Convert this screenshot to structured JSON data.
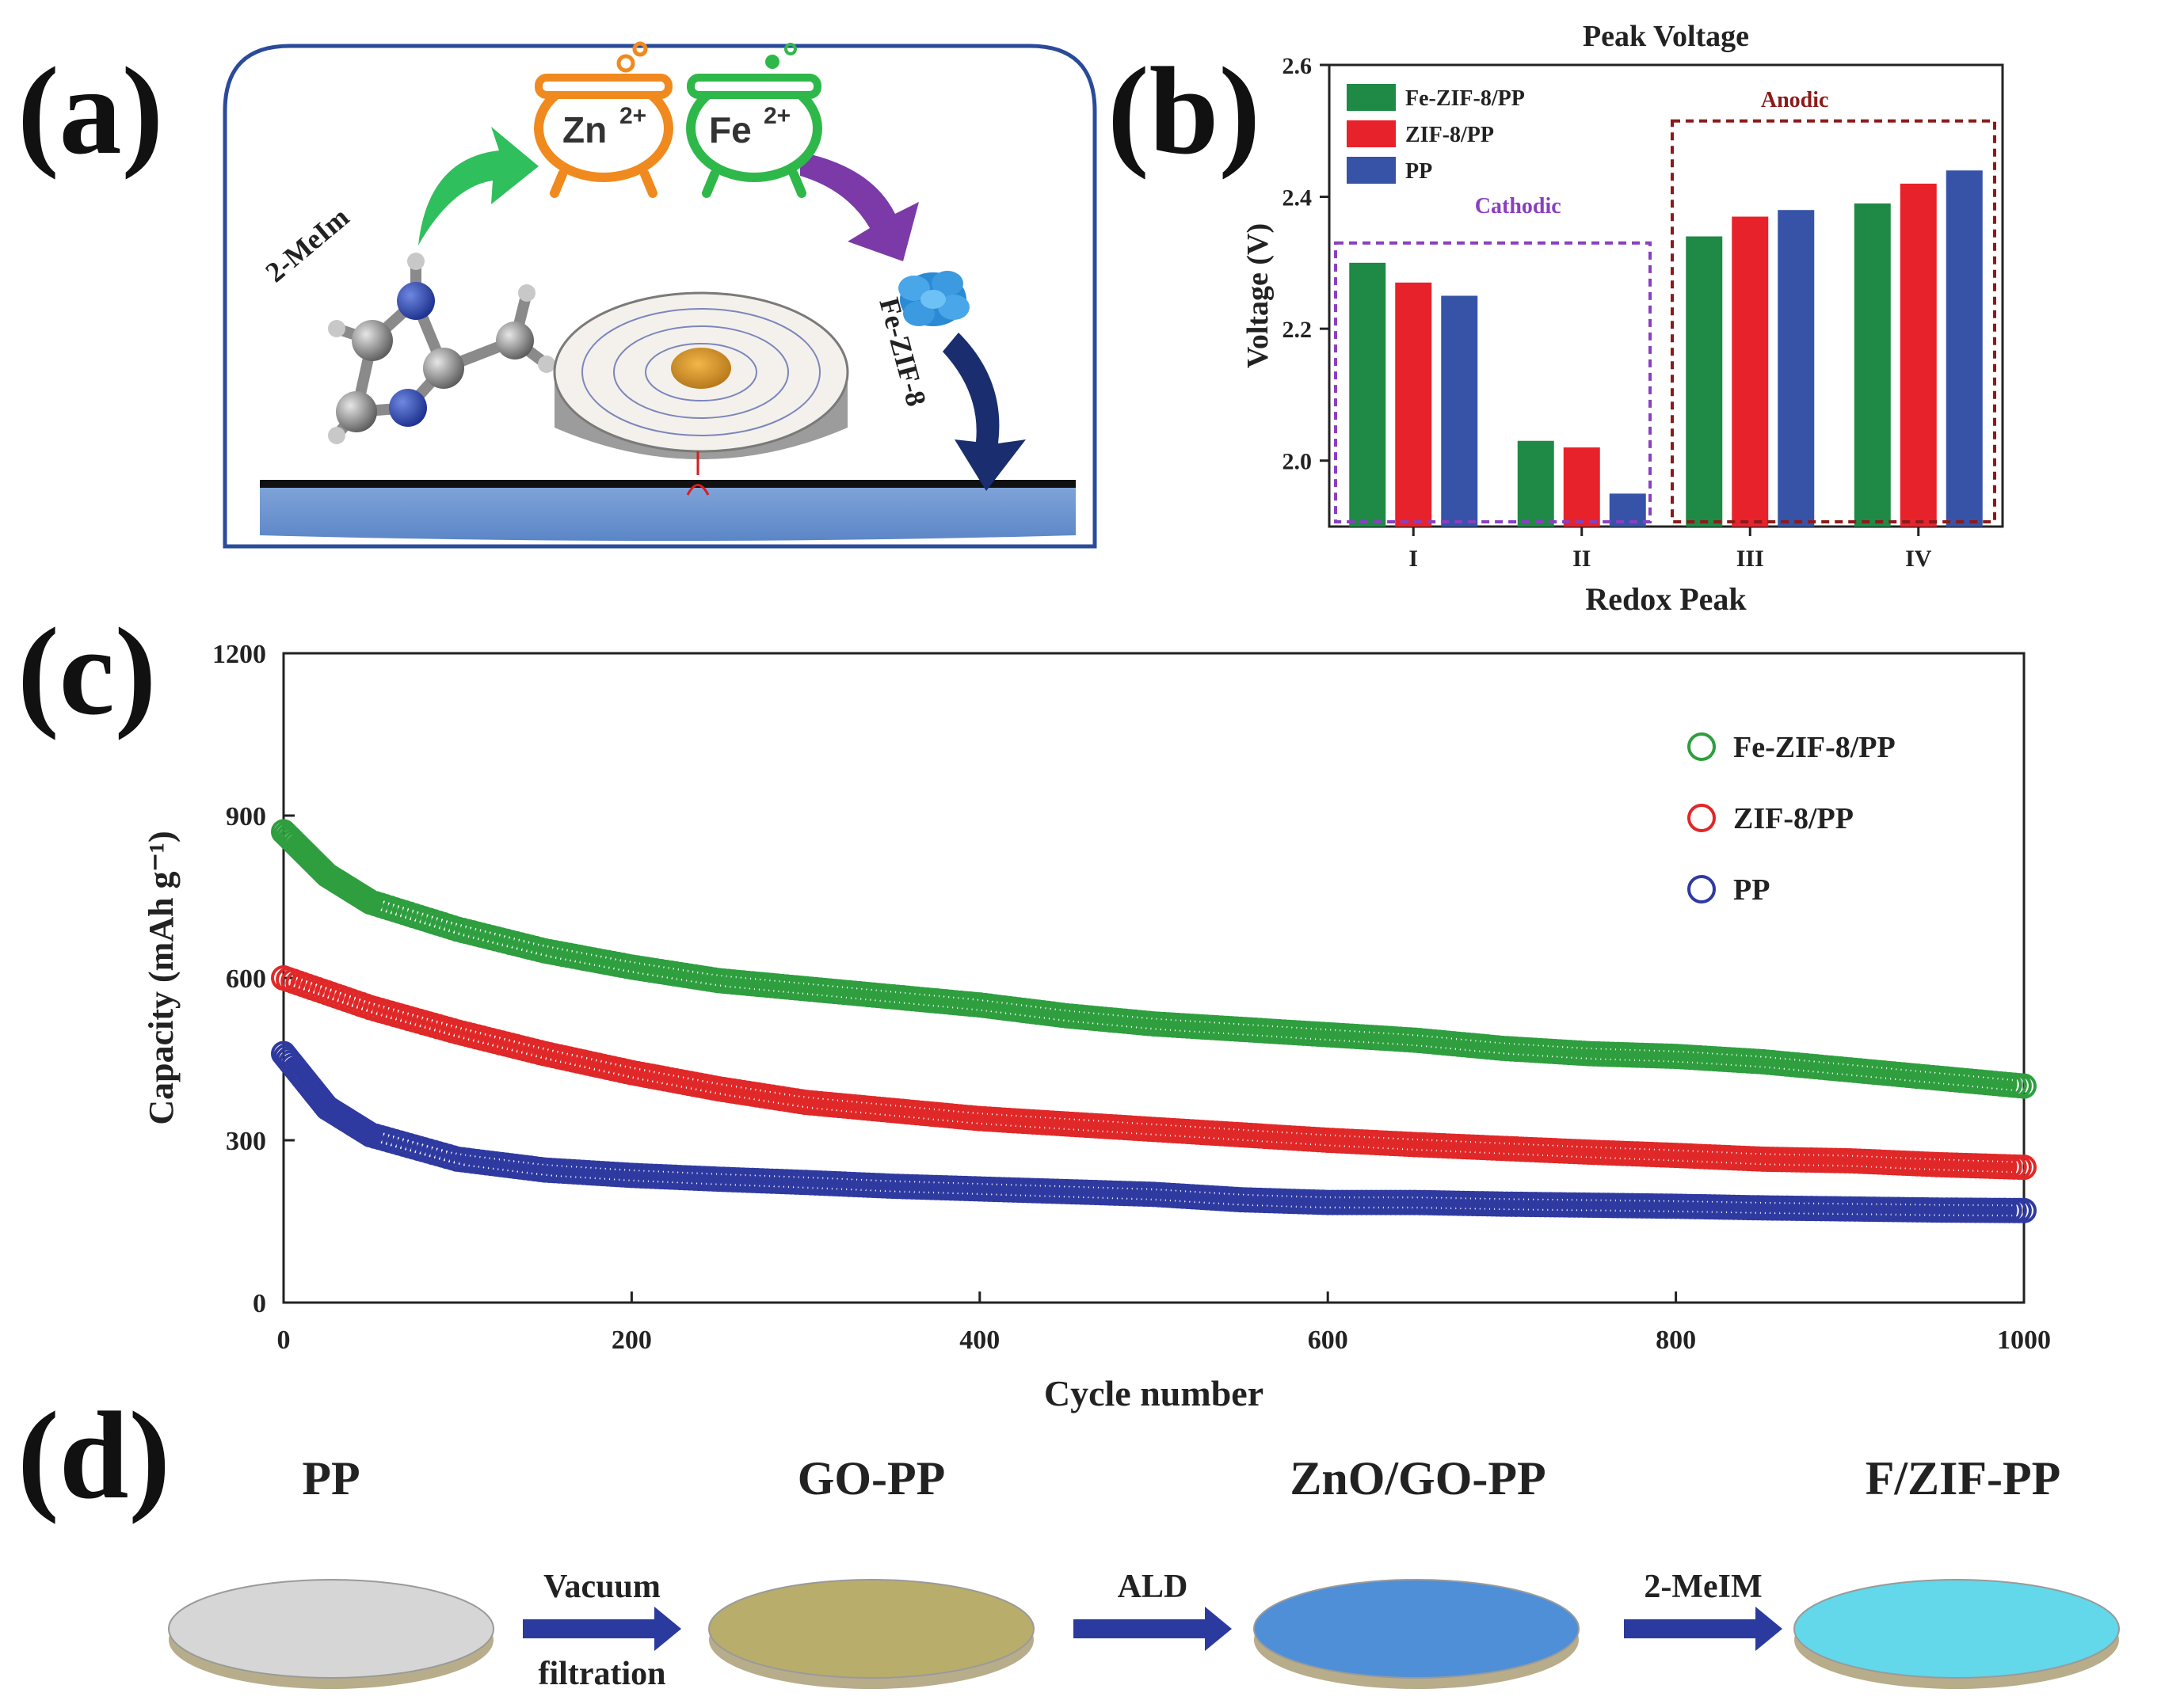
{
  "panels": {
    "a": "(a)",
    "b": "(b)",
    "c": "(c)",
    "d": "(d)"
  },
  "schematic_a": {
    "ion1": "Zn",
    "ion1_charge": "2+",
    "ion2": "Fe",
    "ion2_charge": "2+",
    "ligand": "2-MeIm",
    "product": "Fe-ZIF-8"
  },
  "chart_data": [
    {
      "type": "bar",
      "title": "Peak Voltage",
      "xlabel": "Redox Peak",
      "ylabel": "Voltage (V)",
      "categories": [
        "I",
        "II",
        "III",
        "IV"
      ],
      "ylim": [
        1.9,
        2.6
      ],
      "yticks": [
        "2.0",
        "2.2",
        "2.4",
        "2.6"
      ],
      "series": [
        {
          "name": "Fe-ZIF-8/PP",
          "color": "#1e8a46",
          "values": [
            2.3,
            2.03,
            2.34,
            2.39
          ]
        },
        {
          "name": "ZIF-8/PP",
          "color": "#e8222b",
          "values": [
            2.27,
            2.02,
            2.37,
            2.42
          ]
        },
        {
          "name": "PP",
          "color": "#3653a8",
          "values": [
            2.25,
            1.95,
            2.38,
            2.44
          ]
        }
      ],
      "annotations": [
        {
          "text": "Cathodic",
          "color": "#8a3fc0"
        },
        {
          "text": "Anodic",
          "color": "#8b1a1a"
        }
      ],
      "legend": "top-left",
      "grid": false
    },
    {
      "type": "scatter",
      "xlabel": "Cycle number",
      "ylabel": "Capacity (mAh g⁻¹)",
      "xlim": [
        0,
        1000
      ],
      "ylim": [
        0,
        1200
      ],
      "xticks": [
        "0",
        "200",
        "400",
        "600",
        "800",
        "1000"
      ],
      "yticks": [
        "0",
        "300",
        "600",
        "900",
        "1200"
      ],
      "series": [
        {
          "name": "Fe-ZIF-8/PP",
          "color": "#2e9e3e",
          "x": [
            0,
            25,
            50,
            100,
            150,
            200,
            250,
            300,
            350,
            400,
            450,
            500,
            550,
            600,
            650,
            700,
            750,
            800,
            850,
            900,
            950,
            1000
          ],
          "values": [
            870,
            790,
            740,
            690,
            650,
            620,
            595,
            580,
            565,
            550,
            530,
            515,
            505,
            495,
            485,
            470,
            460,
            455,
            445,
            430,
            415,
            400
          ]
        },
        {
          "name": "ZIF-8/PP",
          "color": "#e02828",
          "x": [
            0,
            50,
            100,
            150,
            200,
            250,
            300,
            350,
            400,
            450,
            500,
            550,
            600,
            650,
            700,
            750,
            800,
            850,
            900,
            950,
            1000
          ],
          "values": [
            600,
            545,
            500,
            460,
            425,
            395,
            370,
            355,
            340,
            330,
            320,
            310,
            300,
            292,
            285,
            278,
            272,
            265,
            262,
            255,
            250
          ]
        },
        {
          "name": "PP",
          "color": "#2f3aa0",
          "x": [
            0,
            25,
            50,
            100,
            150,
            200,
            250,
            300,
            350,
            400,
            450,
            500,
            550,
            600,
            650,
            700,
            750,
            800,
            850,
            900,
            950,
            1000
          ],
          "values": [
            460,
            360,
            310,
            265,
            245,
            235,
            228,
            222,
            215,
            210,
            205,
            200,
            190,
            185,
            185,
            182,
            180,
            178,
            175,
            173,
            171,
            170
          ]
        }
      ],
      "legend": "top-right",
      "grid": false
    }
  ],
  "process_d": {
    "stages": [
      "PP",
      "GO-PP",
      "ZnO/GO-PP",
      "F/ZIF-PP"
    ],
    "steps": [
      {
        "line1": "Vacuum",
        "line2": "filtration"
      },
      {
        "line1": "ALD",
        "line2": ""
      },
      {
        "line1": "2-MeIM",
        "line2": ""
      }
    ],
    "disc_colors": [
      "#d6d6d6",
      "#b9ad6c",
      "#4f8fd8",
      "#62d8ea"
    ]
  }
}
